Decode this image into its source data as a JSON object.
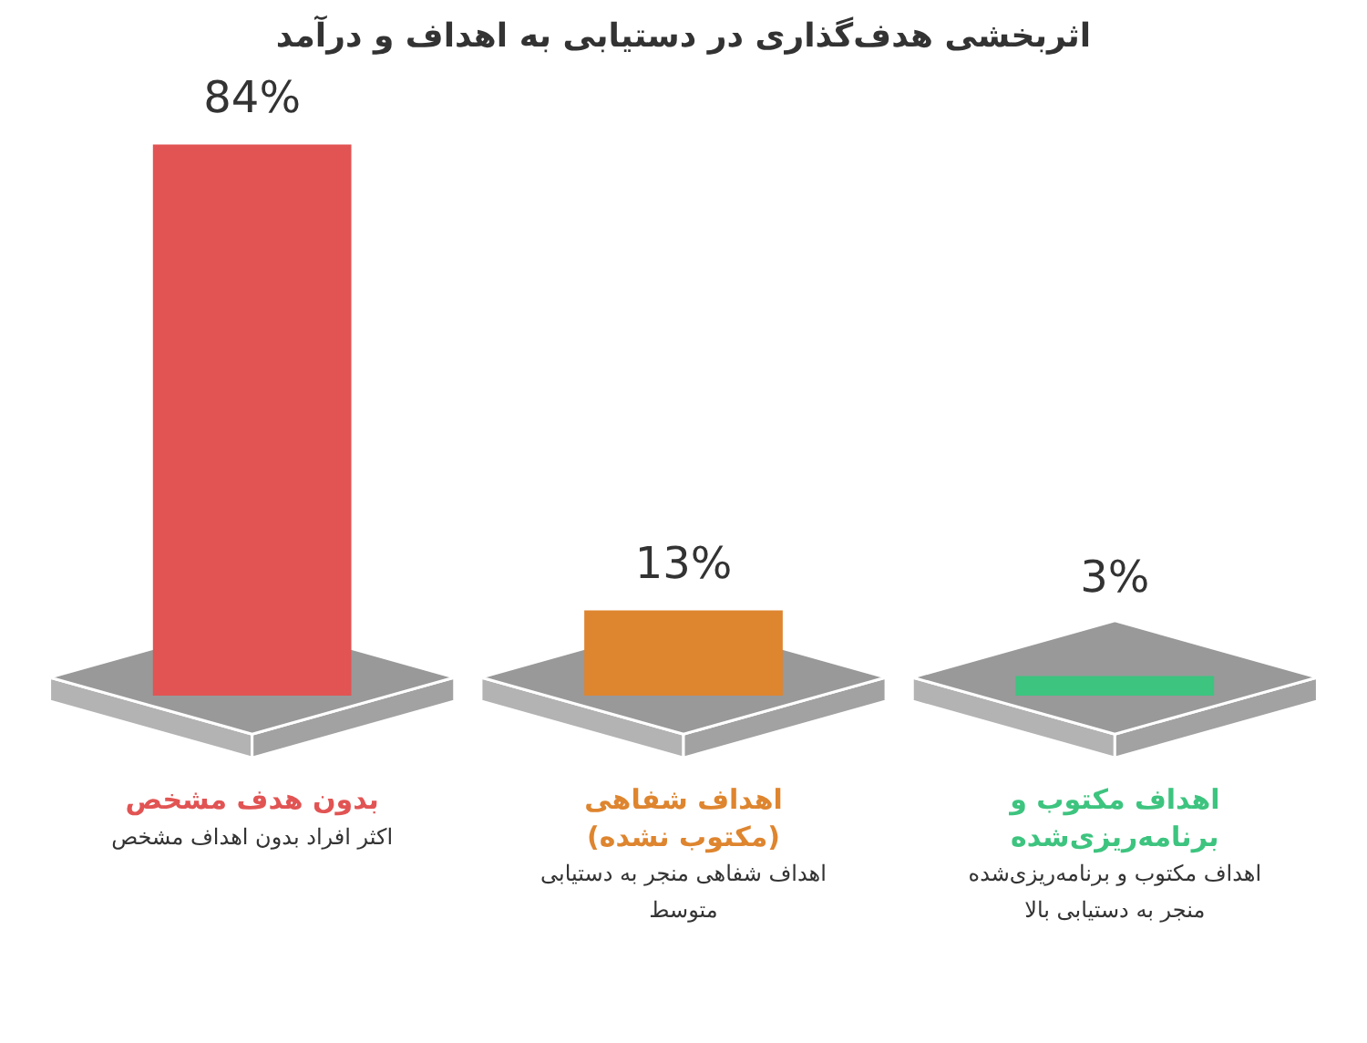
{
  "chart_data": {
    "type": "bar",
    "title": "اثربخشی هدف‌گذاری در دستیابی به اهداف و درآمد",
    "categories": [
      "بدون هدف مشخص",
      "اهداف شفاهی (مکتوب نشده)",
      "اهداف مکتوب و برنامه‌ریزی‌شده"
    ],
    "values": [
      84,
      13,
      3
    ],
    "colors": [
      "#e15453",
      "#de852f",
      "#3dc47f"
    ],
    "value_labels": [
      "84%",
      "13%",
      "3%"
    ],
    "tick_labels": "x",
    "annotations": [
      "اکثر افراد بدون اهداف مشخص",
      "اهداف شفاهی منجر به دستیابی متوسط",
      "اهداف مکتوب و برنامه‌ریزی‌شده منجر به دستیابی بالا"
    ]
  }
}
